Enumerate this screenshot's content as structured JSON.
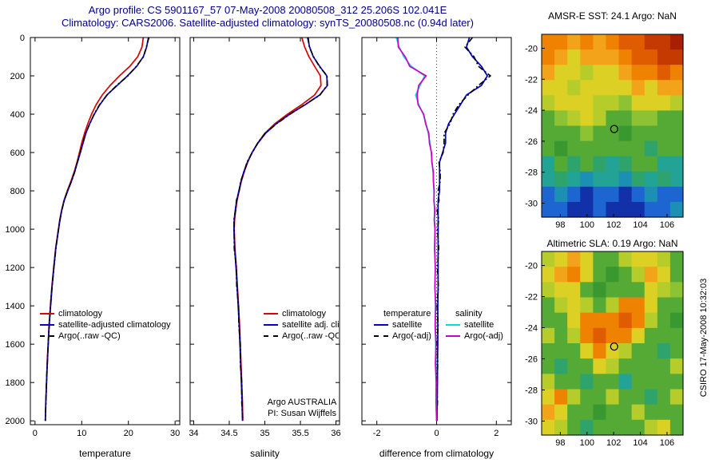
{
  "title": {
    "line1": "Argo profile: CS 5901167_57 07-May-2008 20080508_312 25.206S 102.041E",
    "line2": "Climatology: CARS2006. Satellite-adjusted climatology: synTS_20080508.nc (0.94d later)"
  },
  "watermark": "CSIRO 17-May-2008 10:32:03",
  "annotation": {
    "line1": "Argo AUSTRALIA",
    "line2": "PI: Susan Wijffels"
  },
  "legends": {
    "temperature": [
      {
        "label": "climatology",
        "color": "#dd0000",
        "style": "solid"
      },
      {
        "label": "satellite-adjusted climatology",
        "color": "#0000cc",
        "style": "solid"
      },
      {
        "label": "Argo(..raw -QC)",
        "color": "#000000",
        "style": "dashdot"
      }
    ],
    "salinity": [
      {
        "label": "climatology",
        "color": "#dd0000",
        "style": "solid"
      },
      {
        "label": "satellite adj. clim.",
        "color": "#0000cc",
        "style": "solid"
      },
      {
        "label": "Argo(..raw -QC)",
        "color": "#000000",
        "style": "dashdot"
      }
    ],
    "difference": {
      "col1_header": "temperature",
      "col2_header": "salinity",
      "col1": [
        {
          "label": "satellite",
          "color": "#0000cc",
          "style": "solid"
        },
        {
          "label": "Argo(-adj)",
          "color": "#000000",
          "style": "dashdot"
        }
      ],
      "col2": [
        {
          "label": "satellite",
          "color": "#00dddd",
          "style": "solid"
        },
        {
          "label": "Argo(-adj)",
          "color": "#cc00cc",
          "style": "solid"
        }
      ]
    }
  },
  "profile_depths": [
    0,
    50,
    100,
    150,
    200,
    250,
    300,
    350,
    400,
    450,
    500,
    550,
    600,
    650,
    700,
    750,
    800,
    850,
    900,
    950,
    1000,
    1100,
    1200,
    1300,
    1400,
    1500,
    1600,
    1700,
    1800,
    1900,
    2000
  ],
  "map_palette": {
    "R1": "#a82000",
    "R2": "#c43a00",
    "O1": "#e05c00",
    "O2": "#ef8200",
    "O3": "#f2a31a",
    "Y": "#ddd024",
    "YG": "#b5cc2a",
    "GY": "#8dc232",
    "G": "#55aa36",
    "DG": "#3a9830",
    "TG": "#2fa36c",
    "T": "#23a396",
    "TB": "#1b8fb4",
    "B": "#1d66d2",
    "DB": "#1231a8"
  },
  "chart_data": [
    {
      "id": "temperature-profile",
      "type": "line",
      "xlabel": "temperature",
      "xlim": [
        -1,
        31
      ],
      "xticks": [
        0,
        10,
        20,
        30
      ],
      "ylim": [
        0,
        2020
      ],
      "yticks": [
        0,
        200,
        400,
        600,
        800,
        1000,
        1200,
        1400,
        1600,
        1800,
        2000
      ],
      "zeroline": false,
      "series": [
        {
          "name": "climatology",
          "color": "#dd0000",
          "style": "solid",
          "values": [
            23.2,
            22.9,
            22.0,
            20.3,
            18.1,
            16.1,
            14.4,
            13.1,
            12.1,
            11.3,
            10.6,
            10.0,
            9.5,
            9.0,
            8.4,
            7.7,
            6.9,
            6.2,
            5.7,
            5.3,
            5.0,
            4.4,
            4.0,
            3.6,
            3.3,
            3.0,
            2.8,
            2.6,
            2.45,
            2.3,
            2.2
          ]
        },
        {
          "name": "satellite-adjusted climatology",
          "color": "#0000cc",
          "style": "solid",
          "values": [
            24.3,
            23.9,
            23.2,
            21.8,
            19.8,
            17.6,
            15.4,
            13.9,
            12.7,
            11.7,
            10.9,
            10.3,
            9.7,
            9.1,
            8.5,
            7.8,
            7.0,
            6.25,
            5.75,
            5.35,
            5.05,
            4.45,
            4.05,
            3.65,
            3.34,
            3.04,
            2.84,
            2.63,
            2.48,
            2.32,
            2.22
          ]
        },
        {
          "name": "Argo(..raw -QC)",
          "color": "#000000",
          "style": "dashdot",
          "values": [
            24.4,
            23.85,
            23.25,
            21.7,
            19.9,
            17.5,
            15.45,
            13.85,
            12.65,
            11.75,
            10.85,
            10.25,
            9.72,
            9.08,
            8.52,
            7.82,
            6.95,
            6.28,
            5.72,
            5.37,
            5.03,
            4.47,
            4.03,
            3.66,
            3.32,
            3.05,
            2.82,
            2.64,
            2.46,
            2.33,
            2.2
          ]
        }
      ]
    },
    {
      "id": "salinity-profile",
      "type": "line",
      "xlabel": "salinity",
      "xlim": [
        33.95,
        36.05
      ],
      "xticks": [
        34,
        34.5,
        35,
        35.5,
        36
      ],
      "ylim": [
        0,
        2020
      ],
      "yticks": [
        0,
        200,
        400,
        600,
        800,
        1000,
        1200,
        1400,
        1600,
        1800,
        2000
      ],
      "zeroline": false,
      "series": [
        {
          "name": "climatology",
          "color": "#dd0000",
          "style": "solid",
          "values": [
            35.52,
            35.56,
            35.62,
            35.7,
            35.78,
            35.79,
            35.7,
            35.52,
            35.32,
            35.14,
            35.0,
            34.9,
            34.82,
            34.76,
            34.71,
            34.67,
            34.64,
            34.61,
            34.59,
            34.575,
            34.57,
            34.58,
            34.6,
            34.615,
            34.63,
            34.645,
            34.655,
            34.665,
            34.675,
            34.685,
            34.69
          ]
        },
        {
          "name": "satellite adj. clim.",
          "color": "#0000cc",
          "style": "solid",
          "values": [
            35.6,
            35.63,
            35.68,
            35.77,
            35.87,
            35.88,
            35.77,
            35.57,
            35.35,
            35.16,
            35.01,
            34.905,
            34.82,
            34.755,
            34.705,
            34.665,
            34.635,
            34.605,
            34.585,
            34.57,
            34.565,
            34.575,
            34.595,
            34.61,
            34.625,
            34.64,
            34.65,
            34.66,
            34.67,
            34.68,
            34.685
          ]
        },
        {
          "name": "Argo(..raw -QC)",
          "color": "#000000",
          "style": "dashdot",
          "values": [
            35.61,
            35.625,
            35.685,
            35.765,
            35.875,
            35.875,
            35.775,
            35.565,
            35.355,
            35.165,
            35.005,
            34.9,
            34.825,
            34.75,
            34.71,
            34.66,
            34.64,
            34.6,
            34.59,
            34.565,
            34.57,
            34.57,
            34.6,
            34.605,
            34.63,
            34.635,
            34.655,
            34.655,
            34.675,
            34.675,
            34.69
          ]
        }
      ]
    },
    {
      "id": "difference-from-climatology",
      "type": "line",
      "xlabel": "difference from climatology",
      "xlim": [
        -2.5,
        2.5
      ],
      "xticks": [
        -2,
        0,
        2
      ],
      "ylim": [
        0,
        2020
      ],
      "yticks": [
        0,
        200,
        400,
        600,
        800,
        1000,
        1200,
        1400,
        1600,
        1800,
        2000
      ],
      "zeroline": true,
      "series": [
        {
          "name": "temperature satellite",
          "color": "#0000cc",
          "style": "solid",
          "values": [
            1.1,
            1.0,
            1.2,
            1.5,
            1.7,
            1.5,
            1.0,
            0.8,
            0.6,
            0.4,
            0.3,
            0.3,
            0.2,
            0.1,
            0.1,
            0.1,
            0.1,
            0.05,
            0.05,
            0.05,
            0.05,
            0.05,
            0.05,
            0.05,
            0.04,
            0.04,
            0.04,
            0.03,
            0.03,
            0.02,
            0.02
          ]
        },
        {
          "name": "temperature Argo(-adj)",
          "color": "#000000",
          "style": "dashdot",
          "values": [
            1.2,
            0.95,
            1.25,
            1.4,
            1.8,
            1.4,
            1.05,
            0.75,
            0.55,
            0.45,
            0.25,
            0.25,
            0.22,
            0.08,
            0.12,
            0.12,
            0.05,
            0.08,
            0.02,
            0.07,
            0.03,
            0.07,
            0.03,
            0.06,
            0.02,
            0.05,
            0.02,
            0.04,
            0.01,
            0.03,
            0.0
          ]
        },
        {
          "name": "salinity satellite",
          "color": "#00dddd",
          "style": "solid",
          "values": [
            -1.35,
            -1.25,
            -1.1,
            -0.85,
            -0.4,
            -0.55,
            -0.7,
            -0.6,
            -0.45,
            -0.35,
            -0.28,
            -0.22,
            -0.18,
            -0.15,
            -0.12,
            -0.1,
            -0.09,
            -0.08,
            -0.07,
            -0.07,
            -0.06,
            -0.06,
            -0.05,
            -0.05,
            -0.04,
            -0.04,
            -0.03,
            -0.03,
            -0.02,
            -0.01,
            0.0
          ]
        },
        {
          "name": "salinity Argo(-adj)",
          "color": "#cc00cc",
          "style": "solid",
          "values": [
            -1.3,
            -1.28,
            -1.05,
            -0.9,
            -0.35,
            -0.6,
            -0.65,
            -0.62,
            -0.43,
            -0.37,
            -0.26,
            -0.24,
            -0.17,
            -0.16,
            -0.11,
            -0.11,
            -0.08,
            -0.09,
            -0.06,
            -0.08,
            -0.05,
            -0.07,
            -0.04,
            -0.06,
            -0.03,
            -0.05,
            -0.02,
            -0.04,
            -0.01,
            -0.02,
            0.0
          ]
        }
      ]
    },
    {
      "id": "amsr-e-sst-map",
      "type": "heatmap",
      "title": "AMSR-E SST: 24.1 Argo: NaN",
      "xlim": [
        96.6,
        107.2
      ],
      "ylim": [
        -19.1,
        -30.9
      ],
      "xticks": [
        98,
        100,
        102,
        104,
        106
      ],
      "yticks": [
        -20,
        -22,
        -24,
        -26,
        -28,
        -30
      ],
      "marker": {
        "lon": 102.04,
        "lat": -25.21
      },
      "grid": [
        [
          "O2",
          "O2",
          "O3",
          "O2",
          "O3",
          "O2",
          "O1",
          "O1",
          "R2",
          "R2",
          "R1"
        ],
        [
          "O2",
          "O3",
          "Y",
          "O3",
          "O3",
          "O3",
          "O2",
          "O1",
          "O1",
          "R2",
          "R2"
        ],
        [
          "O3",
          "Y",
          "Y",
          "YG",
          "Y",
          "Y",
          "O3",
          "O2",
          "O2",
          "O1",
          "O2"
        ],
        [
          "Y",
          "Y",
          "YG",
          "Y",
          "Y",
          "Y",
          "Y",
          "O3",
          "Y",
          "O3",
          "O3"
        ],
        [
          "YG",
          "Y",
          "Y",
          "Y",
          "YG",
          "YG",
          "GY",
          "Y",
          "Y",
          "Y",
          "YG"
        ],
        [
          "G",
          "GY",
          "YG",
          "Y",
          "YG",
          "G",
          "G",
          "GY",
          "GY",
          "G",
          "G"
        ],
        [
          "G",
          "G",
          "G",
          "GY",
          "G",
          "G",
          "DG",
          "G",
          "G",
          "G",
          "G"
        ],
        [
          "G",
          "DG",
          "G",
          "G",
          "G",
          "G",
          "G",
          "G",
          "TG",
          "G",
          "G"
        ],
        [
          "T",
          "G",
          "TG",
          "G",
          "TG",
          "T",
          "TG",
          "G",
          "G",
          "T",
          "T"
        ],
        [
          "T",
          "TG",
          "T",
          "TB",
          "T",
          "T",
          "TB",
          "TG",
          "T",
          "TG",
          "T"
        ],
        [
          "B",
          "TB",
          "B",
          "DB",
          "B",
          "B",
          "DB",
          "B",
          "TB",
          "B",
          "B"
        ],
        [
          "B",
          "B",
          "DB",
          "DB",
          "B",
          "DB",
          "DB",
          "DB",
          "B",
          "B",
          "TB"
        ]
      ]
    },
    {
      "id": "altimetric-sla-map",
      "type": "heatmap",
      "title": "Altimetric SLA: 0.19 Argo: NaN",
      "xlim": [
        96.6,
        107.2
      ],
      "ylim": [
        -19.1,
        -30.9
      ],
      "xticks": [
        98,
        100,
        102,
        104,
        106
      ],
      "yticks": [
        -20,
        -22,
        -24,
        -26,
        -28,
        -30
      ],
      "marker": {
        "lon": 102.04,
        "lat": -25.21
      },
      "grid": [
        [
          "YG",
          "Y",
          "O3",
          "Y",
          "G",
          "G",
          "YG",
          "Y",
          "Y",
          "YG",
          "G"
        ],
        [
          "Y",
          "O3",
          "O2",
          "Y",
          "G",
          "DG",
          "G",
          "YG",
          "O3",
          "Y",
          "G"
        ],
        [
          "YG",
          "Y",
          "Y",
          "G",
          "DG",
          "G",
          "G",
          "G",
          "Y",
          "YG",
          "GY"
        ],
        [
          "G",
          "YG",
          "Y",
          "YG",
          "G",
          "YG",
          "O2",
          "O2",
          "Y",
          "G",
          "G"
        ],
        [
          "G",
          "G",
          "Y",
          "O2",
          "O2",
          "O2",
          "O1",
          "O2",
          "YG",
          "G",
          "DG"
        ],
        [
          "YG",
          "G",
          "YG",
          "O2",
          "O1",
          "O2",
          "O2",
          "Y",
          "G",
          "G",
          "G"
        ],
        [
          "G",
          "G",
          "G",
          "Y",
          "O2",
          "Y",
          "YG",
          "G",
          "G",
          "TG",
          "G"
        ],
        [
          "G",
          "TG",
          "G",
          "G",
          "Y",
          "YG",
          "G",
          "G",
          "G",
          "G",
          "YG"
        ],
        [
          "YG",
          "G",
          "G",
          "TG",
          "G",
          "G",
          "T",
          "G",
          "G",
          "G",
          "G"
        ],
        [
          "Y",
          "O2",
          "YG",
          "G",
          "G",
          "YG",
          "G",
          "G",
          "TG",
          "G",
          "YG"
        ],
        [
          "O3",
          "Y",
          "G",
          "G",
          "DG",
          "G",
          "G",
          "YG",
          "G",
          "G",
          "G"
        ],
        [
          "Y",
          "YG",
          "G",
          "TG",
          "G",
          "G",
          "G",
          "G",
          "YG",
          "Y",
          "G"
        ]
      ]
    }
  ]
}
